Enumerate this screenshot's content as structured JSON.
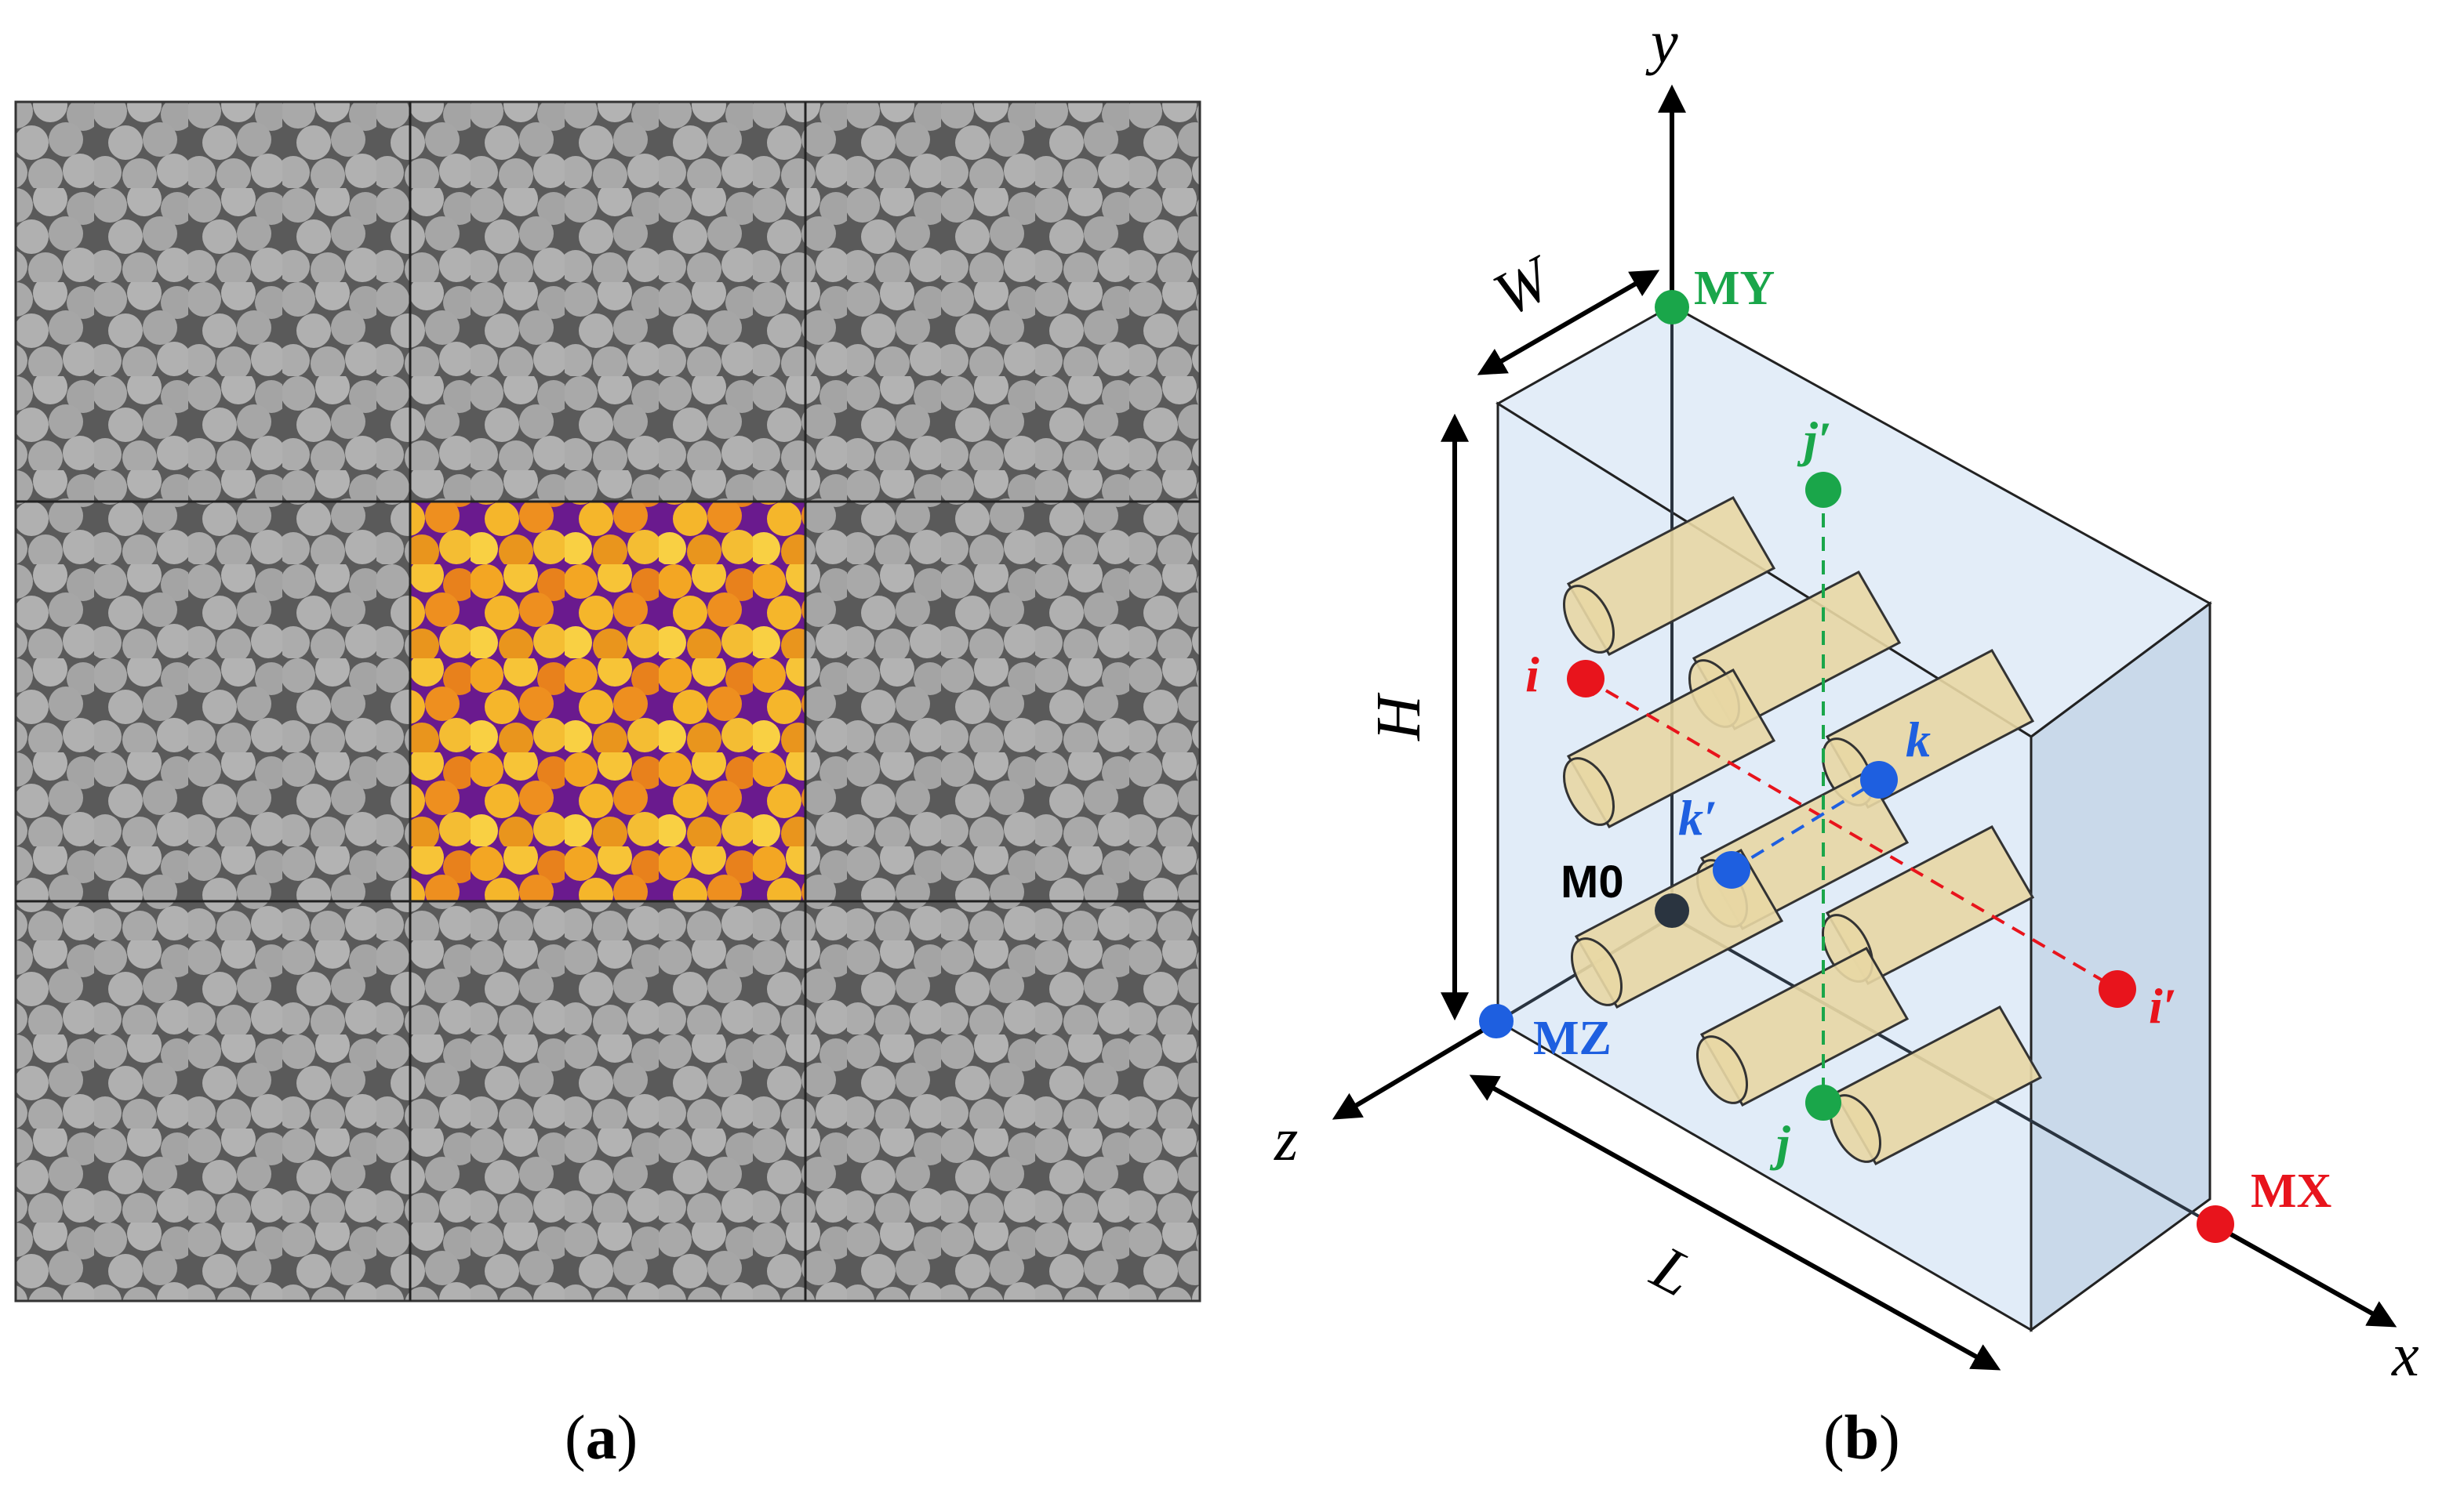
{
  "panel_a": {
    "caption_open": "(",
    "caption_letter": "a",
    "caption_close": ")"
  },
  "panel_b": {
    "caption_open": "(",
    "caption_letter": "b",
    "caption_close": ")",
    "axes": {
      "x": "x",
      "y": "y",
      "z": "z"
    },
    "dimensions": {
      "width": "W",
      "height": "H",
      "length": "L"
    },
    "points": {
      "MY": "MY",
      "MX": "MX",
      "MZ": "MZ",
      "M0": "M0",
      "i": "i",
      "i_prime": "i′",
      "j": "j",
      "j_prime": "j′",
      "k": "k",
      "k_prime": "k′"
    },
    "colors": {
      "red": "#e8141c",
      "green": "#1aa64a",
      "blue": "#1e5fe0",
      "dark": "#2a3440",
      "box_front": "#dce9f7",
      "box_side": "#c9d9ea",
      "fiber": "#e8d7a4"
    }
  }
}
